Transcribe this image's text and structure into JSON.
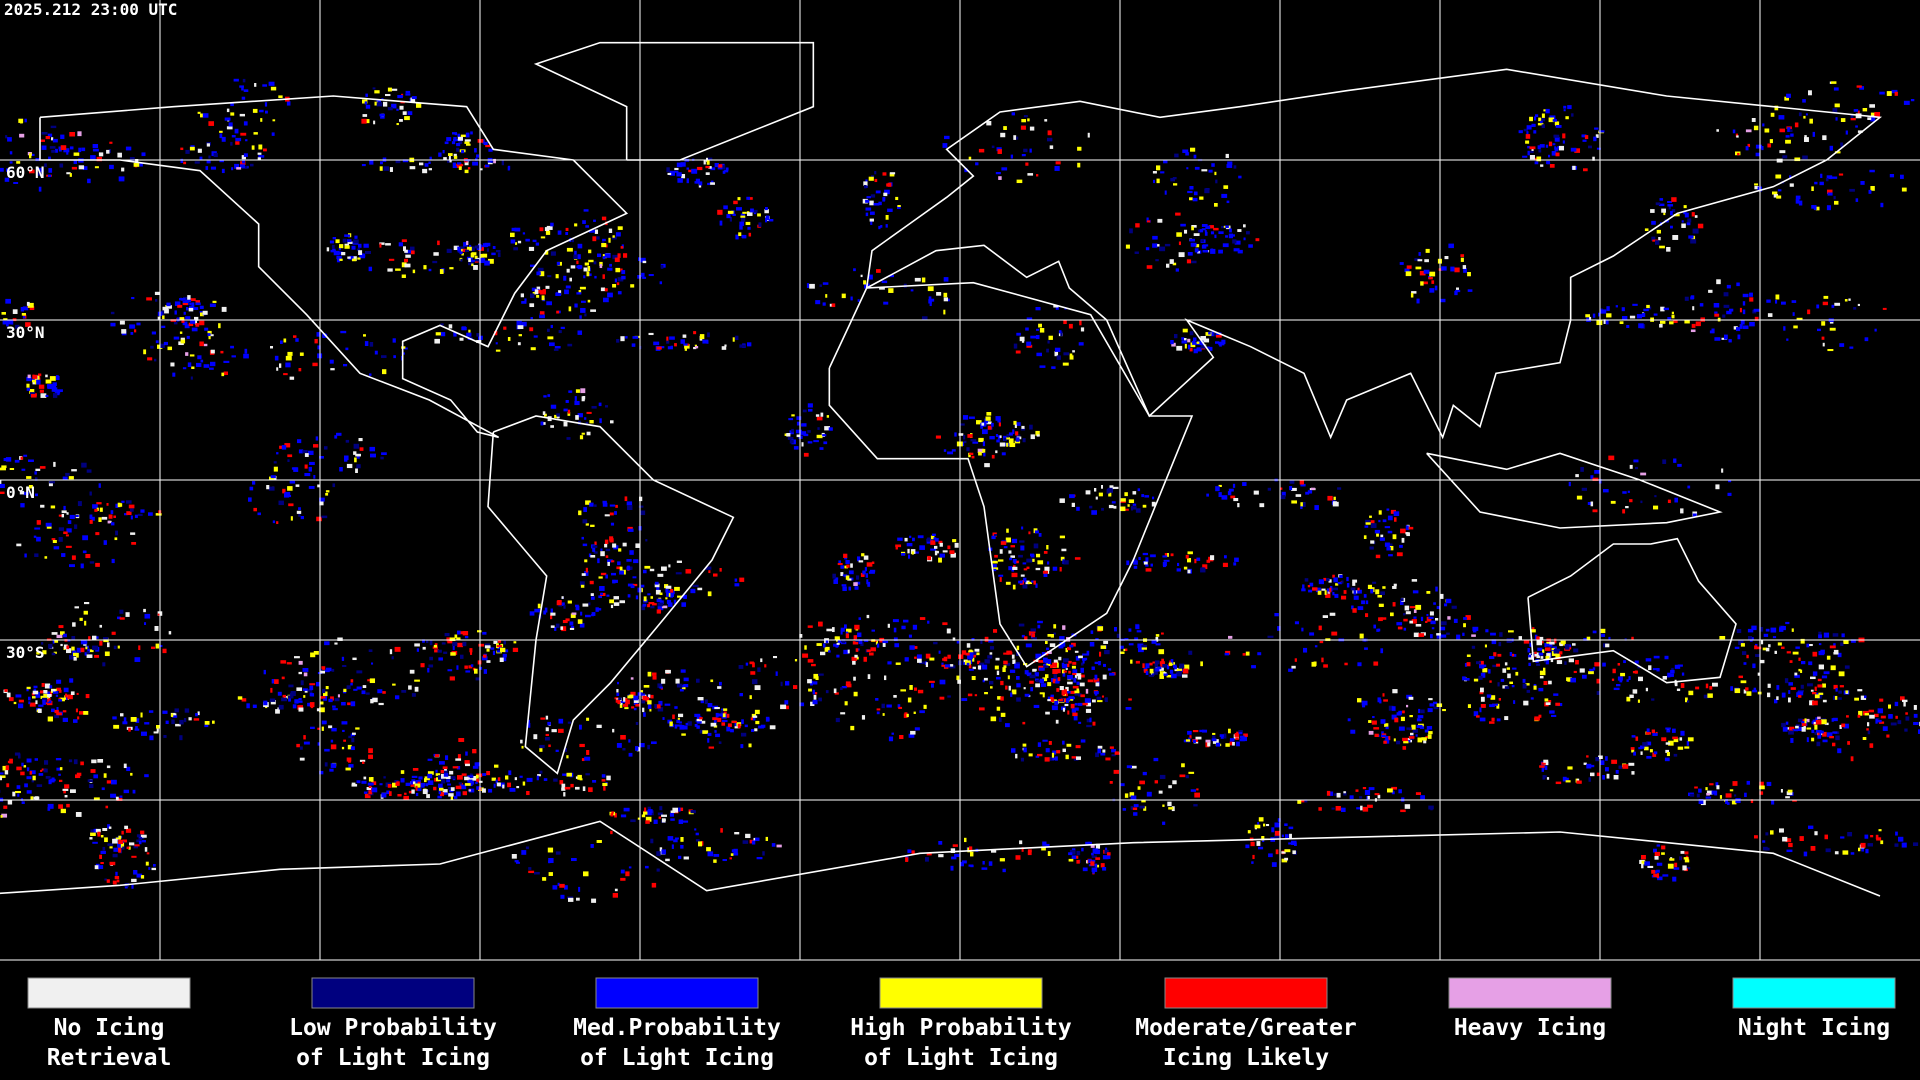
{
  "timestamp": "2025.212 23:00 UTC",
  "latitude_labels": [
    "60°N",
    "30°N",
    "0°N",
    "30°S"
  ],
  "legend": [
    {
      "label": [
        "No Icing",
        "Retrieval"
      ],
      "color": "#f0f0f0"
    },
    {
      "label": [
        "Low Probability",
        "of Light Icing"
      ],
      "color": "#00007f"
    },
    {
      "label": [
        "Med.Probability",
        "of Light Icing"
      ],
      "color": "#0000ff"
    },
    {
      "label": [
        "High Probability",
        "of Light Icing"
      ],
      "color": "#ffff00"
    },
    {
      "label": [
        "Moderate/Greater",
        "Icing Likely"
      ],
      "color": "#ff0000"
    },
    {
      "label": [
        "Heavy Icing",
        ""
      ],
      "color": "#e6a0e6"
    },
    {
      "label": [
        "Night Icing",
        ""
      ],
      "color": "#00ffff"
    }
  ]
}
